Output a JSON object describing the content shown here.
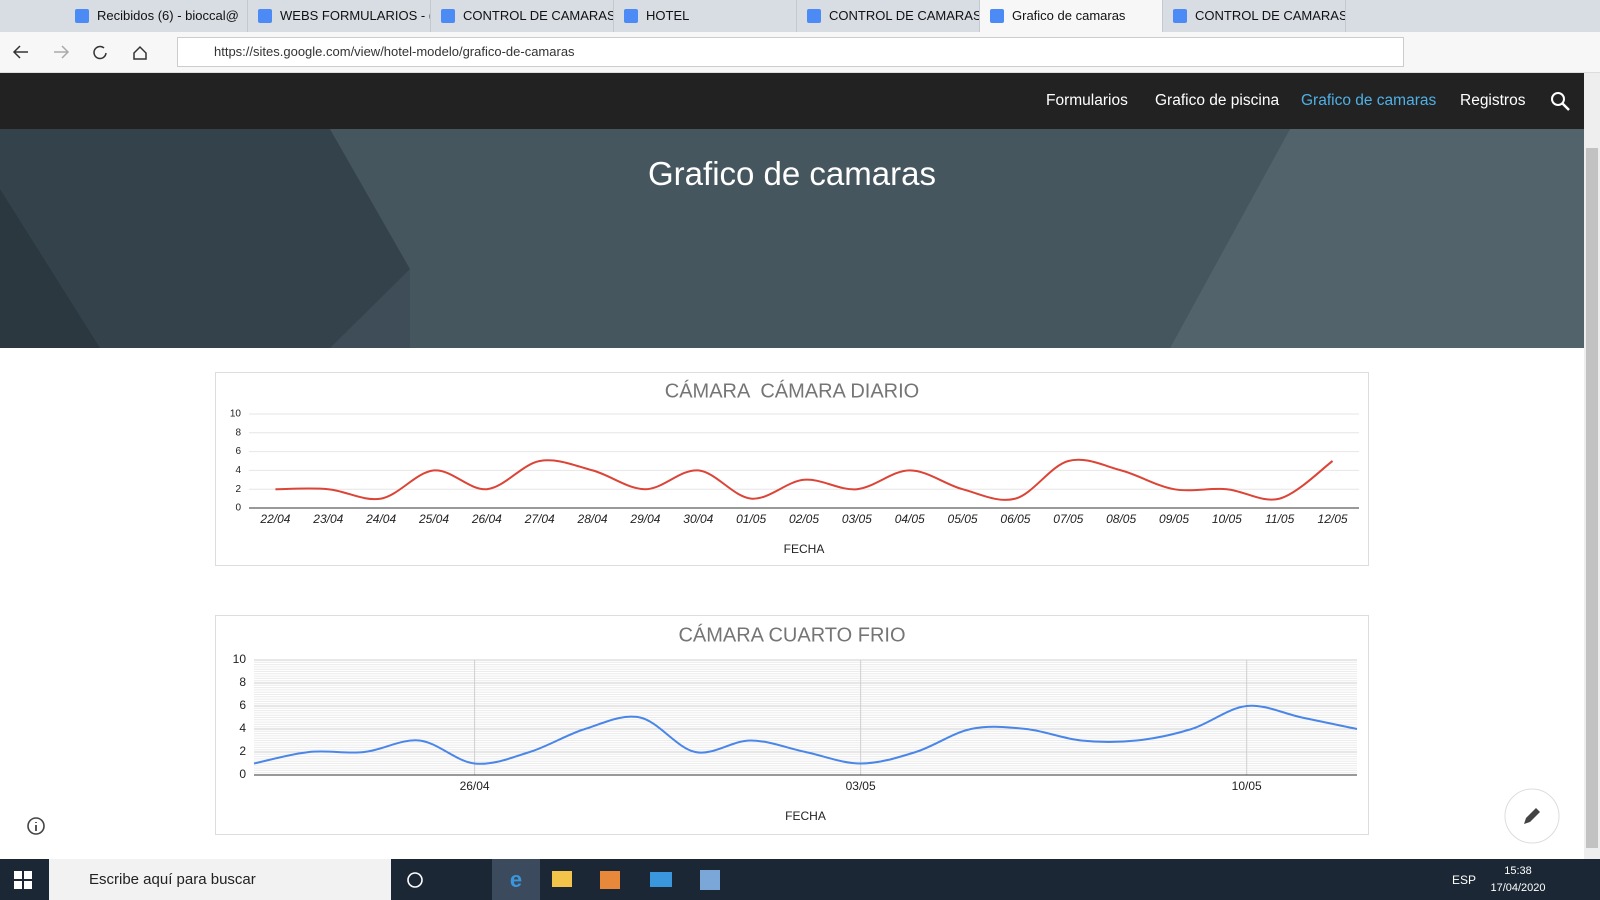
{
  "browser": {
    "tabs": [
      "Recibidos (6) - bioccal@",
      "WEBS FORMULARIOS - (",
      "CONTROL DE CAMARAS",
      "HOTEL",
      "CONTROL DE CAMARAS",
      "Grafico de camaras",
      "CONTROL DE CAMARAS"
    ],
    "url": "https://sites.google.com/view/hotel-modelo/grafico-de-camaras"
  },
  "site": {
    "nav": [
      "Formularios",
      "Grafico de piscina",
      "Grafico de camaras",
      "Registros"
    ],
    "page_title": "Grafico de camaras"
  },
  "chart_data": [
    {
      "type": "line",
      "title": "CÁMARA  CÁMARA DIARIO",
      "xlabel": "FECHA",
      "categories": [
        "22/04",
        "23/04",
        "24/04",
        "25/04",
        "26/04",
        "27/04",
        "28/04",
        "29/04",
        "30/04",
        "01/05",
        "02/05",
        "03/05",
        "04/05",
        "05/05",
        "06/05",
        "07/05",
        "08/05",
        "09/05",
        "10/05",
        "11/05",
        "12/05"
      ],
      "values": [
        2,
        2,
        1,
        4,
        2,
        5,
        4,
        2,
        4,
        1,
        3,
        2,
        4,
        2,
        1,
        5,
        4,
        2,
        2,
        1,
        5
      ],
      "color": "#db4437",
      "ylim": [
        0,
        10
      ],
      "yticks": [
        0,
        2,
        4,
        6,
        8,
        10
      ],
      "grid": true
    },
    {
      "type": "line",
      "title": "CÁMARA CUARTO FRIO",
      "xlabel": "FECHA",
      "categories": [
        null,
        null,
        null,
        null,
        "26/04",
        null,
        null,
        null,
        null,
        null,
        null,
        "03/05",
        null,
        null,
        null,
        null,
        null,
        null,
        "10/05",
        null,
        null
      ],
      "values": [
        1,
        2,
        2,
        3,
        1,
        2,
        4,
        5,
        2,
        3,
        2,
        1,
        2,
        4,
        4,
        3,
        3,
        4,
        6,
        5,
        4
      ],
      "color": "#4a86e8",
      "ylim": [
        0,
        10
      ],
      "yticks": [
        0,
        2,
        4,
        6,
        8,
        10
      ],
      "grid": true
    }
  ],
  "taskbar": {
    "search": "Escribe aquí para buscar",
    "language": "ESP",
    "time": "15:38",
    "date": "17/04/2020"
  }
}
